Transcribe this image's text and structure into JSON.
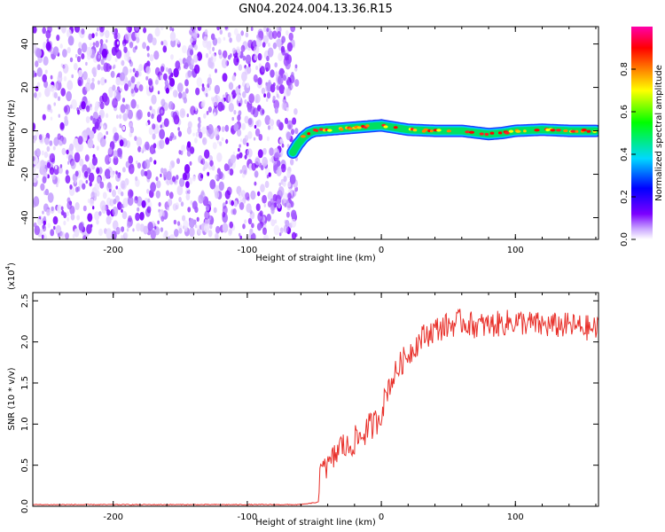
{
  "title": "GN04.2024.004.13.36.R15",
  "chart_data": [
    {
      "type": "heatmap",
      "xlabel": "Height of straight line (km)",
      "ylabel": "Frequency (Hz)",
      "xlim": [
        -260,
        162
      ],
      "ylim": [
        -50,
        48
      ],
      "xticks": [
        -200,
        -100,
        0,
        100
      ],
      "yticks": [
        -40,
        -20,
        0,
        20,
        40
      ],
      "noise_region": {
        "x_from": -260,
        "x_to": -63,
        "frequency_from": -50,
        "frequency_to": 48,
        "amplitude": "low (0.1-0.3)"
      },
      "ridge": {
        "description": "dominant spectral line",
        "x": [
          -66,
          -62,
          -58,
          -54,
          -50,
          -40,
          -30,
          -20,
          -10,
          0,
          10,
          20,
          40,
          60,
          80,
          90,
          100,
          120,
          140,
          160
        ],
        "frequency": [
          -10,
          -6,
          -3,
          -1,
          0,
          0.5,
          1,
          1.5,
          2,
          2.5,
          1.5,
          0.5,
          0,
          0,
          -1.5,
          -1,
          0,
          0.5,
          0,
          0
        ]
      },
      "colorbar": {
        "label": "Normalized spectral amplitude",
        "range": [
          0.0,
          1.0
        ],
        "ticks": [
          "0.0",
          "0.2",
          "0.4",
          "0.6",
          "0.8"
        ],
        "colors": [
          "#ffffff",
          "#7b00ff",
          "#0000ff",
          "#00e0ff",
          "#00ff00",
          "#ffff00",
          "#ff8000",
          "#ff0000",
          "#ff00ff"
        ]
      }
    },
    {
      "type": "line",
      "xlabel": "Height of straight line (km)",
      "ylabel": "SNR (10 * v/v)",
      "y_multiplier": "(x10",
      "y_multiplier_exp": "4",
      "y_multiplier_close": ")",
      "xlim": [
        -260,
        162
      ],
      "ylim": [
        0,
        2.6
      ],
      "xticks": [
        -200,
        -100,
        0,
        100
      ],
      "yticks": [
        "0.0",
        "0.5",
        "1.0",
        "1.5",
        "2.0",
        "2.5"
      ],
      "series": [
        {
          "color": "#e8302a",
          "x": [
            -260,
            -200,
            -150,
            -100,
            -60,
            -47,
            -44,
            -40,
            -35,
            -30,
            -25,
            -20,
            -15,
            -10,
            -5,
            0,
            5,
            10,
            15,
            20,
            25,
            30,
            40,
            50,
            60,
            70,
            80,
            100,
            120,
            140,
            162
          ],
          "y": [
            0.02,
            0.02,
            0.02,
            0.02,
            0.02,
            0.05,
            0.65,
            0.45,
            0.6,
            0.75,
            0.7,
            0.8,
            0.85,
            0.95,
            1.0,
            1.15,
            1.45,
            1.6,
            1.75,
            1.85,
            1.95,
            2.05,
            2.15,
            2.2,
            2.25,
            2.2,
            2.2,
            2.25,
            2.2,
            2.2,
            2.15
          ]
        }
      ]
    }
  ]
}
